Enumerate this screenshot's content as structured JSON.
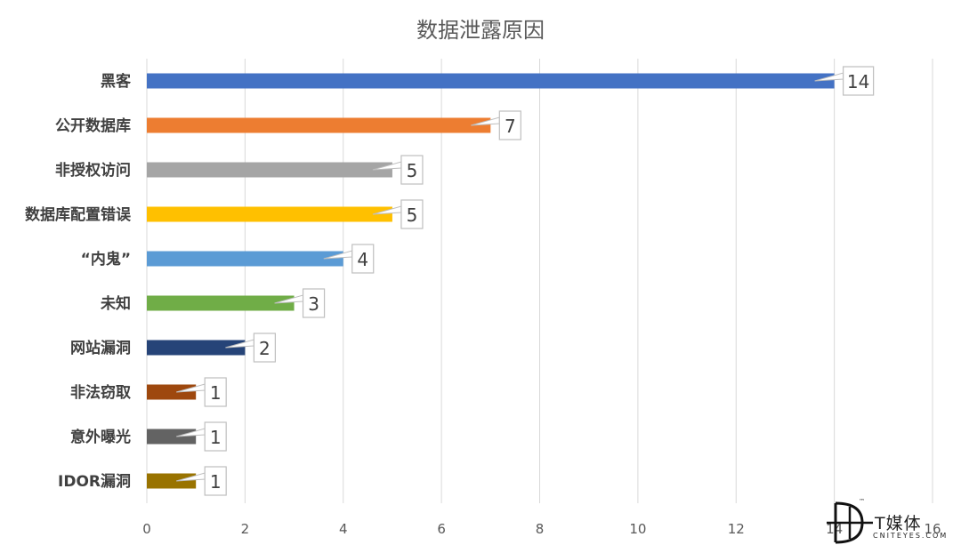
{
  "chart_data": {
    "type": "bar",
    "orientation": "horizontal",
    "title": "数据泄露原因",
    "categories": [
      "黑客",
      "公开数据库",
      "非授权访问",
      "数据库配置错误",
      "“内鬼”",
      "未知",
      "网站漏洞",
      "非法窃取",
      "意外曝光",
      "IDOR漏洞"
    ],
    "values": [
      14,
      7,
      5,
      5,
      4,
      3,
      2,
      1,
      1,
      1
    ],
    "colors": [
      "#4472C4",
      "#ED7D31",
      "#A5A5A5",
      "#FFC000",
      "#5B9BD5",
      "#70AD47",
      "#264478",
      "#9E480E",
      "#636363",
      "#997300"
    ],
    "xlim": [
      0,
      16
    ],
    "xticks": [
      0,
      2,
      4,
      6,
      8,
      10,
      12,
      14,
      16
    ],
    "grid": true,
    "legend": "none"
  },
  "watermark": {
    "name": "T媒体",
    "domain": "CNITEYES.COM",
    "tm": "™"
  }
}
